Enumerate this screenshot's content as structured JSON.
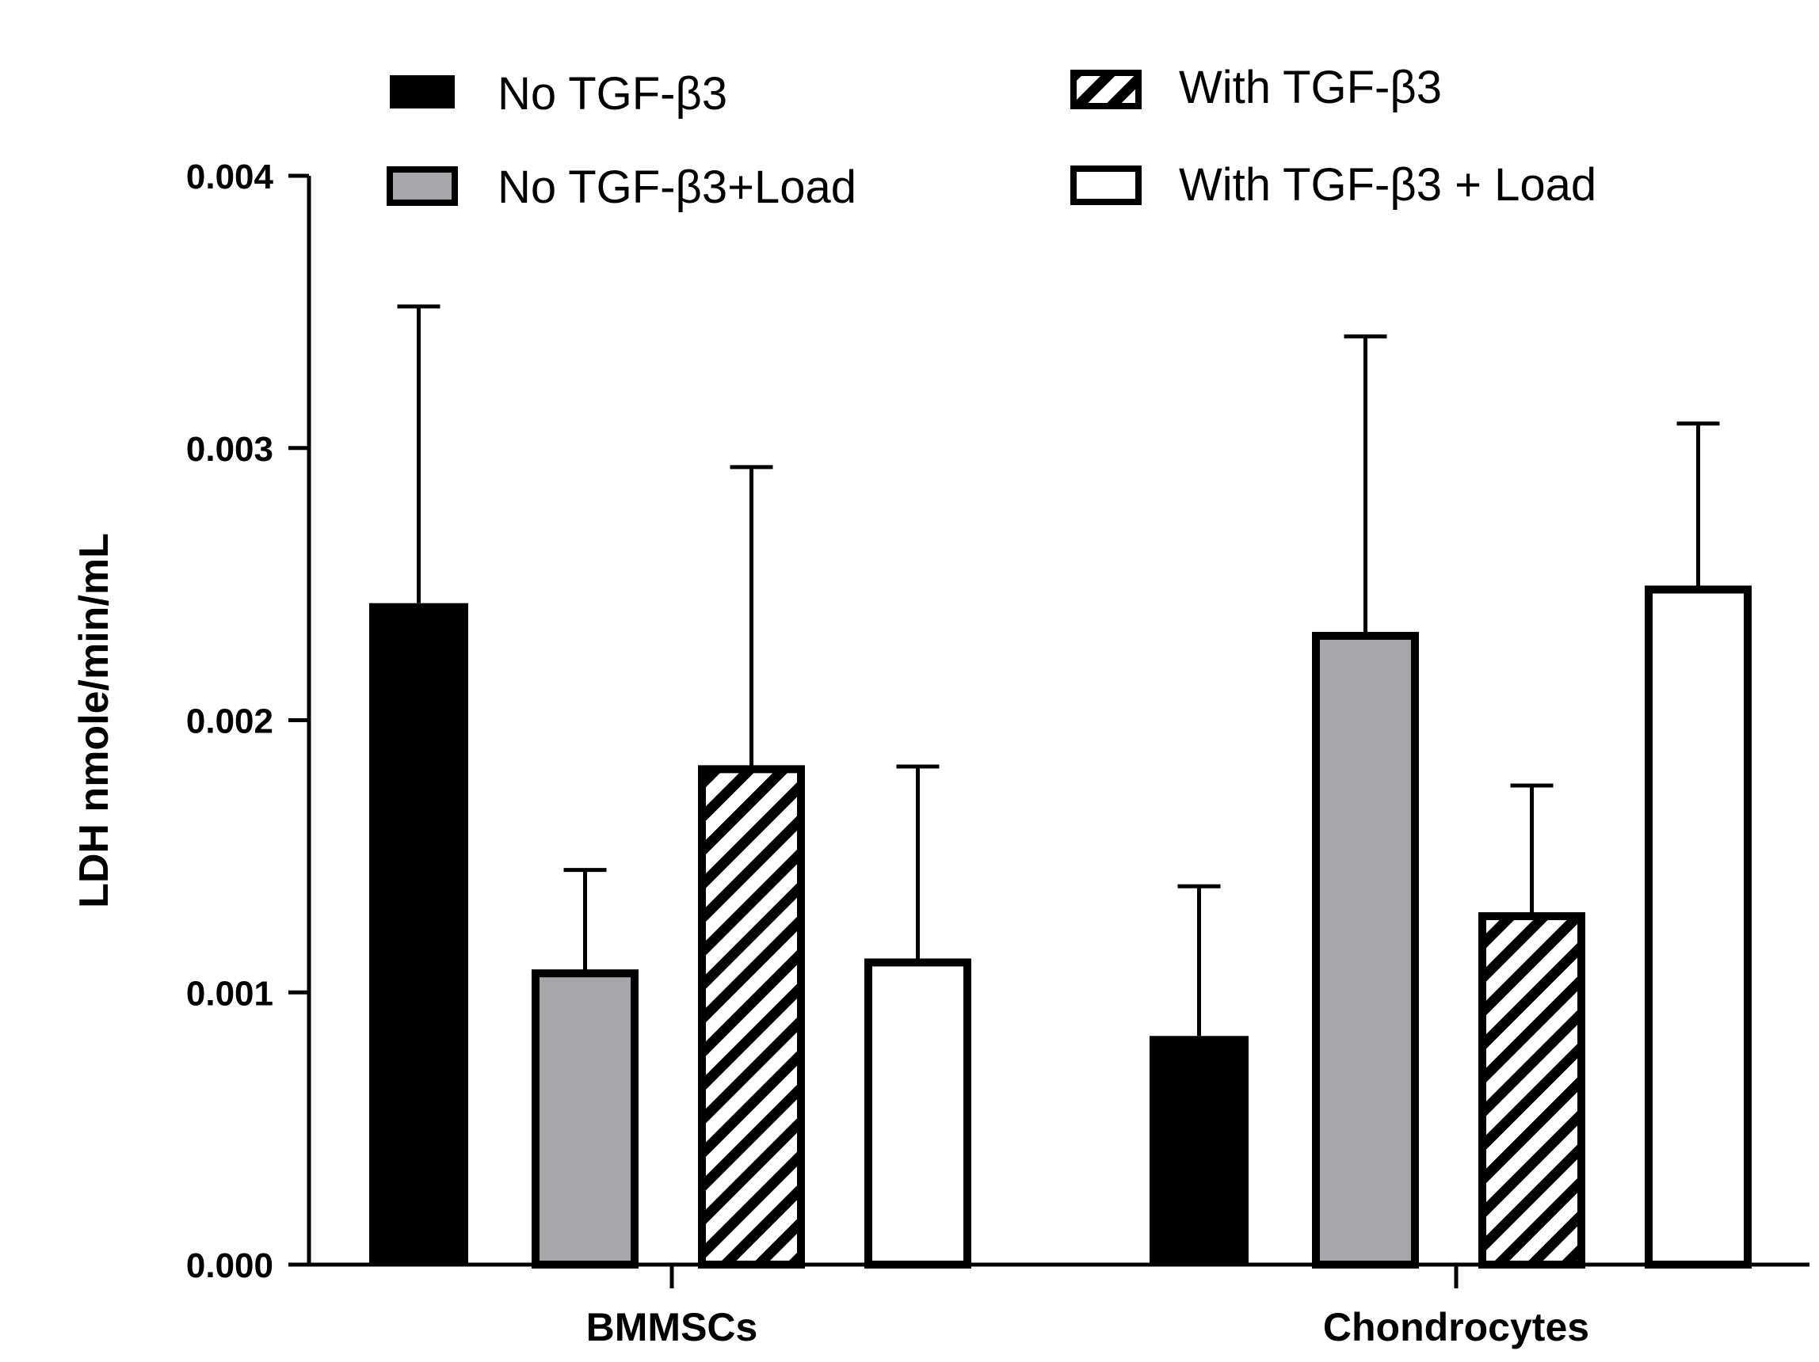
{
  "chart_data": {
    "type": "bar",
    "title": "",
    "xlabel": "",
    "ylabel": "LDH nmole/min/mL",
    "categories": [
      "BMMSCs",
      "Chondrocytes"
    ],
    "ylim": [
      0,
      0.004
    ],
    "yticks": [
      "0.000",
      "0.001",
      "0.002",
      "0.003",
      "0.004"
    ],
    "ytick_values": [
      0,
      0.001,
      0.002,
      0.003,
      0.004
    ],
    "grid": false,
    "legend_position": "top",
    "series": [
      {
        "name": "No TGF-β3",
        "fill": "black",
        "values": [
          0.00243,
          0.00084
        ],
        "errors": [
          0.00109,
          0.00055
        ]
      },
      {
        "name": "No TGF-β3+Load",
        "fill": "gray",
        "values": [
          0.00107,
          0.00231
        ],
        "errors": [
          0.00038,
          0.0011
        ]
      },
      {
        "name": "With TGF-β3",
        "fill": "hatch",
        "values": [
          0.00182,
          0.00128
        ],
        "errors": [
          0.00111,
          0.00048
        ]
      },
      {
        "name": "With TGF-β3 + Load",
        "fill": "white",
        "values": [
          0.00111,
          0.00248
        ],
        "errors": [
          0.00072,
          0.00061
        ]
      }
    ],
    "colors": {
      "black": "#000000",
      "gray": "#a7a6aa",
      "white": "#ffffff",
      "stroke": "#000000"
    }
  }
}
